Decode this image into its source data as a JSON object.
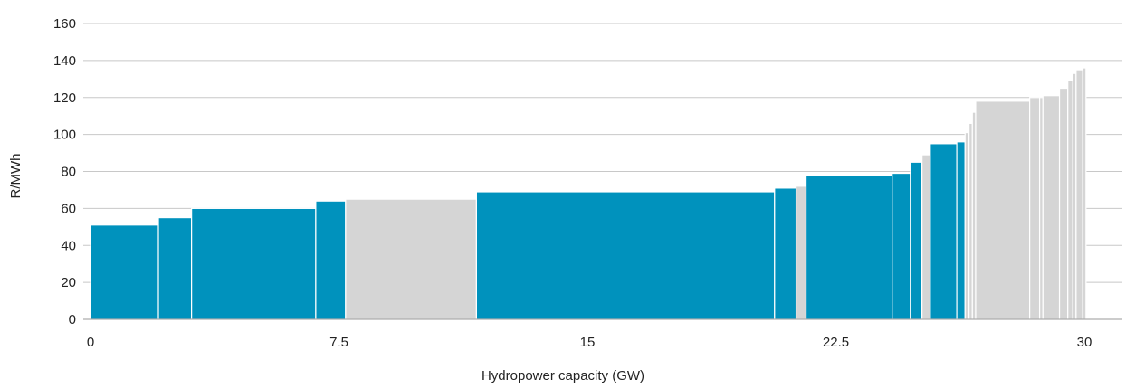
{
  "chart_data": {
    "type": "bar",
    "variant": "supply-curve",
    "title": "",
    "xlabel": "Hydropower capacity (GW)",
    "ylabel": "R/MWh",
    "xlim": [
      0,
      30
    ],
    "ylim": [
      0,
      160
    ],
    "x_ticks": [
      "0",
      "7.5",
      "15",
      "22.5",
      "30"
    ],
    "x_tick_values": [
      0,
      7.5,
      15,
      22.5,
      30
    ],
    "y_ticks": [
      "0",
      "20",
      "40",
      "60",
      "80",
      "100",
      "120",
      "140",
      "160"
    ],
    "y_tick_values": [
      0,
      20,
      40,
      60,
      80,
      100,
      120,
      140,
      160
    ],
    "grid": "horizontal",
    "colors": {
      "blue": "#0092bd",
      "grey": "#d5d5d5",
      "grid": "#c8c8c8"
    },
    "bars": [
      {
        "x0": 0.0,
        "x1": 2.05,
        "value": 51,
        "color": "blue"
      },
      {
        "x0": 2.05,
        "x1": 3.05,
        "value": 55,
        "color": "blue"
      },
      {
        "x0": 3.05,
        "x1": 6.8,
        "value": 60,
        "color": "blue"
      },
      {
        "x0": 6.8,
        "x1": 7.7,
        "value": 64,
        "color": "blue"
      },
      {
        "x0": 7.7,
        "x1": 11.65,
        "value": 65,
        "color": "grey"
      },
      {
        "x0": 11.65,
        "x1": 20.65,
        "value": 69,
        "color": "blue"
      },
      {
        "x0": 20.65,
        "x1": 21.3,
        "value": 71,
        "color": "blue"
      },
      {
        "x0": 21.3,
        "x1": 21.6,
        "value": 72,
        "color": "grey"
      },
      {
        "x0": 21.6,
        "x1": 24.2,
        "value": 78,
        "color": "blue"
      },
      {
        "x0": 24.2,
        "x1": 24.75,
        "value": 79,
        "color": "blue"
      },
      {
        "x0": 24.75,
        "x1": 25.1,
        "value": 85,
        "color": "blue"
      },
      {
        "x0": 25.1,
        "x1": 25.35,
        "value": 89,
        "color": "grey"
      },
      {
        "x0": 25.35,
        "x1": 26.15,
        "value": 95,
        "color": "blue"
      },
      {
        "x0": 26.15,
        "x1": 26.4,
        "value": 96,
        "color": "blue"
      },
      {
        "x0": 26.4,
        "x1": 26.52,
        "value": 101,
        "color": "grey"
      },
      {
        "x0": 26.52,
        "x1": 26.62,
        "value": 106,
        "color": "grey"
      },
      {
        "x0": 26.62,
        "x1": 26.72,
        "value": 112,
        "color": "grey"
      },
      {
        "x0": 26.72,
        "x1": 28.35,
        "value": 118,
        "color": "grey"
      },
      {
        "x0": 28.35,
        "x1": 28.65,
        "value": 120,
        "color": "grey"
      },
      {
        "x0": 28.65,
        "x1": 28.75,
        "value": 120,
        "color": "grey"
      },
      {
        "x0": 28.75,
        "x1": 29.25,
        "value": 121,
        "color": "grey"
      },
      {
        "x0": 29.25,
        "x1": 29.5,
        "value": 125,
        "color": "grey"
      },
      {
        "x0": 29.5,
        "x1": 29.65,
        "value": 129,
        "color": "grey"
      },
      {
        "x0": 29.65,
        "x1": 29.75,
        "value": 133,
        "color": "grey"
      },
      {
        "x0": 29.75,
        "x1": 29.95,
        "value": 135,
        "color": "grey"
      },
      {
        "x0": 29.95,
        "x1": 30.05,
        "value": 136,
        "color": "grey"
      }
    ]
  }
}
